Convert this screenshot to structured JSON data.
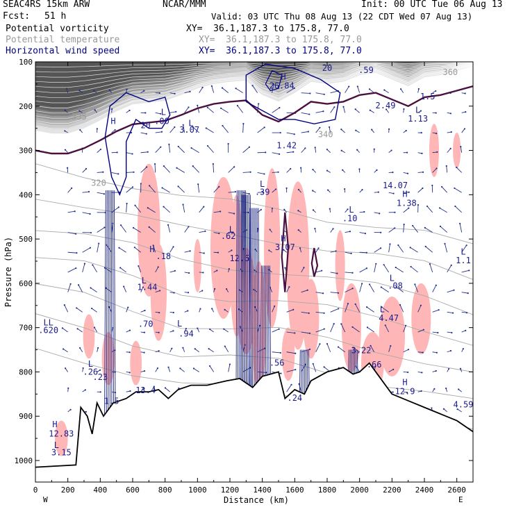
{
  "header": {
    "model": "SEAC4RS 15km ARW",
    "org": "NCAR/MMM",
    "init": "Init: 00 UTC Tue 06 Aug 13",
    "fcst_label": "Fcst:",
    "fcst_value": "51 h",
    "valid": "Valid: 03 UTC Thu 08 Aug 13 (22 CDT Wed 07 Aug 13)"
  },
  "legend": [
    {
      "name": "Potential vorticity",
      "xy": "XY=  36.1,187.3 to 175.8, 77.0",
      "color": "#000000"
    },
    {
      "name": "Potential temperature",
      "xy": "XY=  36.1,187.3 to 175.8, 77.0",
      "color": "#999999"
    },
    {
      "name": "Horizontal wind speed",
      "xy": "XY=  36.1,187.3 to 175.8, 77.0",
      "color": "#000080"
    }
  ],
  "chart_data": {
    "type": "cross-section",
    "xlabel": "Distance (km)",
    "ylabel": "Pressure (hPa)",
    "xlim": [
      0,
      2700
    ],
    "ylim": [
      1050,
      100
    ],
    "x_ticks": [
      "0",
      "200",
      "400",
      "600",
      "800",
      "1000",
      "1200",
      "1400",
      "1600",
      "1800",
      "2000",
      "2200",
      "2400",
      "2600"
    ],
    "y_ticks": [
      "100",
      "200",
      "300",
      "400",
      "500",
      "600",
      "700",
      "800",
      "900",
      "1000"
    ],
    "endpoints": {
      "left": "W",
      "right": "E"
    },
    "theta_labels": [
      {
        "text": "335",
        "x": 270,
        "y": 230
      },
      {
        "text": "320",
        "x": 390,
        "y": 380
      },
      {
        "text": "340",
        "x": 1790,
        "y": 270
      },
      {
        "text": "360",
        "x": 2560,
        "y": 130
      }
    ],
    "extrema_labels": [
      {
        "text": "H",
        "x": 480,
        "y": 240
      },
      {
        "text": "20",
        "x": 680,
        "y": 250
      },
      {
        "text": "L",
        "x": 790,
        "y": 220
      },
      {
        "text": ".00",
        "x": 780,
        "y": 240
      },
      {
        "text": "L",
        "x": 960,
        "y": 245
      },
      {
        "text": "3.07",
        "x": 950,
        "y": 260
      },
      {
        "text": "H",
        "x": 1530,
        "y": 140
      },
      {
        "text": "26.84",
        "x": 1520,
        "y": 160
      },
      {
        "text": "20",
        "x": 1800,
        "y": 120
      },
      {
        "text": ".59",
        "x": 2040,
        "y": 125
      },
      {
        "text": "2.49",
        "x": 2160,
        "y": 205
      },
      {
        "text": "1.5",
        "x": 2420,
        "y": 185
      },
      {
        "text": "L",
        "x": 2360,
        "y": 215
      },
      {
        "text": "1.13",
        "x": 2360,
        "y": 235
      },
      {
        "text": "1.42",
        "x": 1550,
        "y": 295
      },
      {
        "text": "L",
        "x": 1400,
        "y": 382
      },
      {
        "text": ".39",
        "x": 1400,
        "y": 400
      },
      {
        "text": "14.07",
        "x": 2220,
        "y": 385
      },
      {
        "text": "H",
        "x": 2280,
        "y": 405
      },
      {
        "text": "1.38",
        "x": 2290,
        "y": 425
      },
      {
        "text": "L",
        "x": 1950,
        "y": 440
      },
      {
        "text": ".10",
        "x": 1940,
        "y": 460
      },
      {
        "text": "L",
        "x": 1210,
        "y": 485
      },
      {
        "text": ".62",
        "x": 1190,
        "y": 500
      },
      {
        "text": "H",
        "x": 1530,
        "y": 505
      },
      {
        "text": "3.07",
        "x": 1540,
        "y": 525
      },
      {
        "text": "12.5",
        "x": 1260,
        "y": 550
      },
      {
        "text": "H",
        "x": 720,
        "y": 530
      },
      {
        "text": ".18",
        "x": 790,
        "y": 545
      },
      {
        "text": "L",
        "x": 2640,
        "y": 535
      },
      {
        "text": "1.1",
        "x": 2640,
        "y": 555
      },
      {
        "text": "L",
        "x": 670,
        "y": 600
      },
      {
        "text": "1.44",
        "x": 690,
        "y": 615
      },
      {
        "text": "L",
        "x": 2200,
        "y": 595
      },
      {
        "text": ".08",
        "x": 2220,
        "y": 612
      },
      {
        "text": "L",
        "x": 2140,
        "y": 665
      },
      {
        "text": "4.47",
        "x": 2180,
        "y": 685
      },
      {
        "text": "LL",
        "x": 80,
        "y": 695
      },
      {
        "text": ".620",
        "x": 80,
        "y": 712
      },
      {
        "text": ".70",
        "x": 680,
        "y": 698
      },
      {
        "text": "L",
        "x": 890,
        "y": 697
      },
      {
        "text": ".94",
        "x": 930,
        "y": 720
      },
      {
        "text": "3.22",
        "x": 2010,
        "y": 758
      },
      {
        "text": "L",
        "x": 340,
        "y": 788
      },
      {
        "text": ".26",
        "x": 340,
        "y": 806
      },
      {
        "text": ".23",
        "x": 400,
        "y": 818
      },
      {
        "text": ".56",
        "x": 1490,
        "y": 786
      },
      {
        "text": ".66",
        "x": 2090,
        "y": 790
      },
      {
        "text": "H",
        "x": 2280,
        "y": 830
      },
      {
        "text": "12.9",
        "x": 2280,
        "y": 850
      },
      {
        "text": "13.4",
        "x": 680,
        "y": 848
      },
      {
        "text": "1.5",
        "x": 470,
        "y": 872
      },
      {
        "text": ".24",
        "x": 1600,
        "y": 865
      },
      {
        "text": "4.59",
        "x": 2640,
        "y": 880
      },
      {
        "text": "H",
        "x": 120,
        "y": 925
      },
      {
        "text": "12.83",
        "x": 160,
        "y": 946
      },
      {
        "text": "L",
        "x": 130,
        "y": 972
      },
      {
        "text": "3.15",
        "x": 160,
        "y": 988
      }
    ],
    "pv_contour_levels_note": "",
    "pv_shading": "grey",
    "wind_speed_contour_color": "#000080",
    "negative_pv_color": "#ffb6b6"
  }
}
